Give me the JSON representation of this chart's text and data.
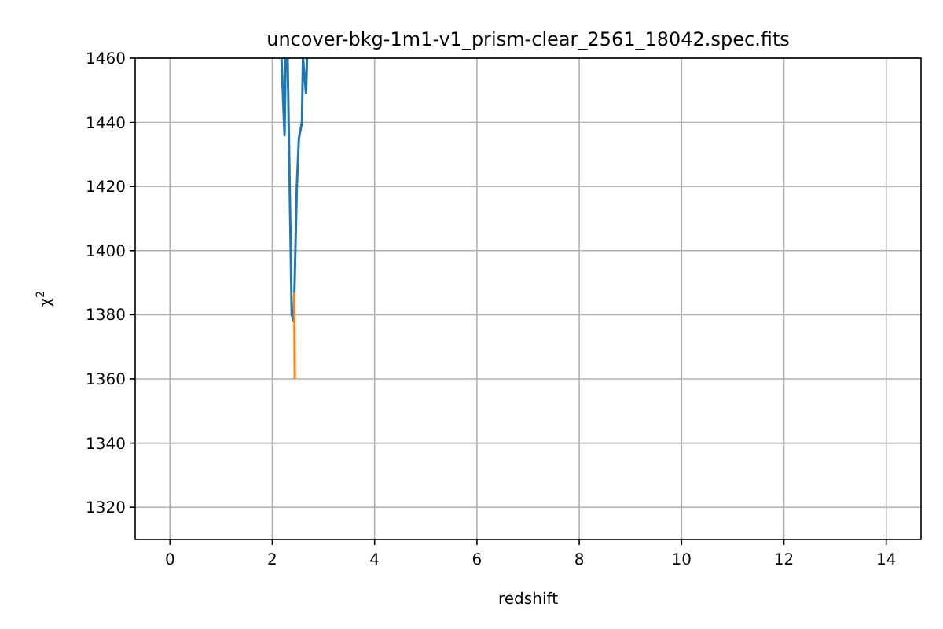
{
  "chart_data": {
    "type": "line",
    "title": "uncover-bkg-1m1-v1_prism-clear_2561_18042.spec.fits",
    "xlabel": "redshift",
    "ylabel": "χ$^{2}$",
    "xlim": [
      -0.68,
      14.68
    ],
    "xticks": [
      0,
      2,
      4,
      6,
      8,
      10,
      12,
      14
    ],
    "ylim": [
      1310,
      1460
    ],
    "yticks": [
      1320,
      1340,
      1360,
      1380,
      1400,
      1420,
      1440,
      1460
    ],
    "grid": true,
    "series": [
      {
        "color": "#1f77b4",
        "x": [
          2.18,
          2.24,
          2.26,
          2.3,
          2.38,
          2.42,
          2.48,
          2.52,
          2.58,
          2.6,
          2.66,
          2.68
        ],
        "values": [
          1460,
          1436,
          1460,
          1460,
          1380,
          1378,
          1420,
          1435,
          1440,
          1460,
          1449,
          1460
        ]
      },
      {
        "color": "#ff7f0e",
        "x": [
          2.43,
          2.44
        ],
        "values": [
          1387,
          1360
        ]
      }
    ]
  }
}
